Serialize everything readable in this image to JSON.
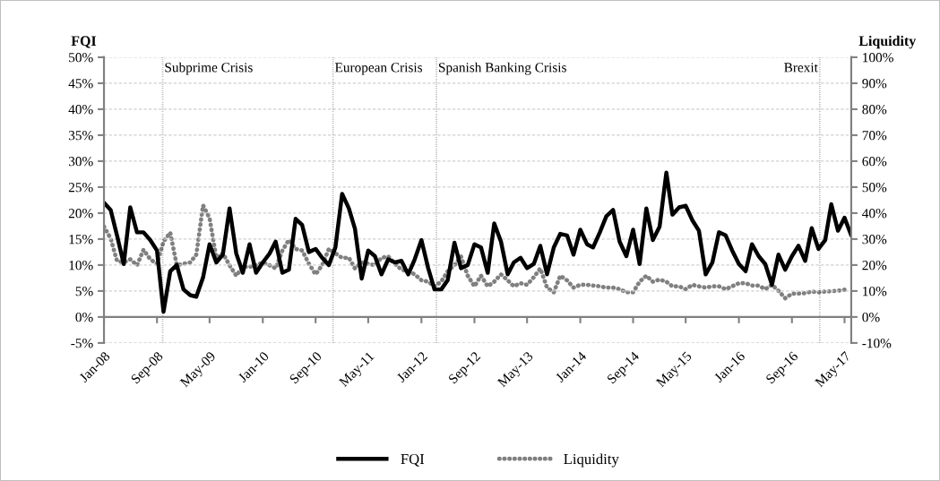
{
  "chart_data": {
    "type": "line",
    "ylabel": "FQI",
    "y2label": "Liquidity",
    "x": [
      "2008-01",
      "2008-02",
      "2008-03",
      "2008-04",
      "2008-05",
      "2008-06",
      "2008-07",
      "2008-08",
      "2008-09",
      "2008-10",
      "2008-11",
      "2008-12",
      "2009-01",
      "2009-02",
      "2009-03",
      "2009-04",
      "2009-05",
      "2009-06",
      "2009-07",
      "2009-08",
      "2009-09",
      "2009-10",
      "2009-11",
      "2009-12",
      "2010-01",
      "2010-02",
      "2010-03",
      "2010-04",
      "2010-05",
      "2010-06",
      "2010-07",
      "2010-08",
      "2010-09",
      "2010-10",
      "2010-11",
      "2010-12",
      "2011-01",
      "2011-02",
      "2011-03",
      "2011-04",
      "2011-05",
      "2011-06",
      "2011-07",
      "2011-08",
      "2011-09",
      "2011-10",
      "2011-11",
      "2011-12",
      "2012-01",
      "2012-02",
      "2012-03",
      "2012-04",
      "2012-05",
      "2012-06",
      "2012-07",
      "2012-08",
      "2012-09",
      "2012-10",
      "2012-11",
      "2012-12",
      "2013-01",
      "2013-02",
      "2013-03",
      "2013-04",
      "2013-05",
      "2013-06",
      "2013-07",
      "2013-08",
      "2013-09",
      "2013-10",
      "2013-11",
      "2013-12",
      "2014-01",
      "2014-02",
      "2014-03",
      "2014-04",
      "2014-05",
      "2014-06",
      "2014-07",
      "2014-08",
      "2014-09",
      "2014-10",
      "2014-11",
      "2014-12",
      "2015-01",
      "2015-02",
      "2015-03",
      "2015-04",
      "2015-05",
      "2015-06",
      "2015-07",
      "2015-08",
      "2015-09",
      "2015-10",
      "2015-11",
      "2015-12",
      "2016-01",
      "2016-02",
      "2016-03",
      "2016-04",
      "2016-05",
      "2016-06",
      "2016-07",
      "2016-08",
      "2016-09",
      "2016-10",
      "2016-11",
      "2016-12",
      "2017-01",
      "2017-02",
      "2017-03",
      "2017-04",
      "2017-05",
      "2017-06"
    ],
    "series": [
      {
        "name": "FQI",
        "color": "#000000",
        "line_style": "solid",
        "values": [
          22.0,
          20.6,
          15.7,
          10.2,
          21.1,
          16.3,
          16.3,
          14.8,
          12.8,
          1.0,
          8.8,
          10.0,
          5.3,
          4.2,
          3.9,
          7.6,
          14.0,
          10.5,
          12.0,
          20.9,
          12.2,
          8.5,
          14.0,
          8.5,
          10.5,
          12.2,
          14.5,
          8.5,
          9.1,
          18.9,
          17.7,
          12.5,
          13.1,
          11.4,
          10.0,
          13.4,
          23.7,
          20.9,
          17.0,
          7.4,
          12.8,
          11.7,
          8.2,
          11.1,
          10.5,
          10.8,
          8.2,
          11.1,
          14.8,
          9.4,
          5.3,
          5.3,
          7.1,
          14.3,
          9.4,
          10.0,
          14.0,
          13.4,
          8.5,
          18.0,
          14.5,
          8.2,
          10.5,
          11.4,
          9.4,
          10.2,
          13.7,
          8.2,
          13.4,
          16.0,
          15.7,
          12.0,
          16.8,
          14.0,
          13.4,
          16.3,
          19.4,
          20.6,
          14.5,
          11.7,
          16.8,
          10.2,
          20.9,
          14.8,
          17.4,
          27.8,
          19.7,
          21.1,
          21.4,
          18.6,
          16.6,
          8.2,
          10.5,
          16.3,
          15.7,
          12.8,
          10.2,
          8.8,
          14.0,
          11.7,
          10.2,
          6.2,
          12.0,
          9.1,
          11.7,
          13.7,
          10.8,
          17.1,
          13.1,
          14.8,
          21.7,
          16.6,
          19.1,
          15.7
        ]
      },
      {
        "name": "Liquidity",
        "color": "#808080",
        "line_style": "dotted",
        "axis": "y2",
        "values": [
          34.8,
          30.2,
          21.6,
          21.0,
          22.2,
          19.9,
          25.9,
          22.2,
          20.5,
          29.0,
          32.5,
          19.9,
          20.5,
          21.0,
          24.0,
          43.0,
          38.0,
          22.8,
          24.5,
          19.9,
          15.9,
          19.3,
          19.3,
          19.9,
          21.0,
          19.9,
          18.7,
          25.6,
          29.7,
          26.2,
          25.6,
          20.5,
          16.4,
          19.9,
          26.2,
          24.5,
          22.8,
          22.8,
          18.7,
          21.0,
          20.5,
          19.9,
          22.8,
          23.3,
          20.5,
          18.2,
          17.6,
          16.4,
          14.1,
          13.6,
          11.8,
          13.6,
          17.6,
          19.9,
          23.3,
          15.9,
          11.8,
          15.9,
          11.8,
          13.6,
          16.4,
          14.1,
          11.8,
          13.0,
          12.4,
          15.3,
          18.7,
          11.3,
          9.5,
          15.9,
          14.1,
          11.3,
          12.4,
          12.4,
          12.1,
          11.8,
          11.3,
          11.3,
          10.7,
          9.5,
          9.5,
          13.6,
          15.9,
          13.6,
          14.4,
          13.6,
          11.8,
          11.8,
          10.7,
          12.4,
          11.8,
          11.3,
          11.8,
          11.8,
          10.7,
          11.8,
          13.0,
          13.0,
          12.1,
          12.1,
          10.7,
          12.4,
          10.1,
          7.2,
          9.0,
          9.0,
          9.2,
          9.8,
          9.5,
          9.8,
          9.9,
          10.1,
          10.5,
          null
        ]
      }
    ],
    "xlim": [
      "2008-01",
      "2017-06"
    ],
    "xticks": [
      {
        "value": "2008-01",
        "label": "Jan-08"
      },
      {
        "value": "2008-09",
        "label": "Sep-08"
      },
      {
        "value": "2009-05",
        "label": "May-09"
      },
      {
        "value": "2010-01",
        "label": "Jan-10"
      },
      {
        "value": "2010-09",
        "label": "Sep-10"
      },
      {
        "value": "2011-05",
        "label": "May-11"
      },
      {
        "value": "2012-01",
        "label": "Jan-12"
      },
      {
        "value": "2012-09",
        "label": "Sep-12"
      },
      {
        "value": "2013-05",
        "label": "May-13"
      },
      {
        "value": "2014-01",
        "label": "Jan-14"
      },
      {
        "value": "2014-09",
        "label": "Sep-14"
      },
      {
        "value": "2015-05",
        "label": "May-15"
      },
      {
        "value": "2016-01",
        "label": "Jan-16"
      },
      {
        "value": "2016-09",
        "label": "Sep-16"
      },
      {
        "value": "2017-05",
        "label": "May-17"
      }
    ],
    "ylim": [
      -5,
      50
    ],
    "yticks": [
      {
        "value": -5,
        "label": "-5%"
      },
      {
        "value": 0,
        "label": "0%"
      },
      {
        "value": 5,
        "label": "5%"
      },
      {
        "value": 10,
        "label": "10%"
      },
      {
        "value": 15,
        "label": "15%"
      },
      {
        "value": 20,
        "label": "20%"
      },
      {
        "value": 25,
        "label": "25%"
      },
      {
        "value": 30,
        "label": "30%"
      },
      {
        "value": 35,
        "label": "35%"
      },
      {
        "value": 40,
        "label": "40%"
      },
      {
        "value": 45,
        "label": "45%"
      },
      {
        "value": 50,
        "label": "50%"
      }
    ],
    "y2lim": [
      -10,
      100
    ],
    "y2ticks": [
      {
        "value": -10,
        "label": "-10%"
      },
      {
        "value": 0,
        "label": "0%"
      },
      {
        "value": 10,
        "label": "10%"
      },
      {
        "value": 20,
        "label": "20%"
      },
      {
        "value": 30,
        "label": "30%"
      },
      {
        "value": 40,
        "label": "40%"
      },
      {
        "value": 50,
        "label": "50%"
      },
      {
        "value": 60,
        "label": "60%"
      },
      {
        "value": 70,
        "label": "70%"
      },
      {
        "value": 80,
        "label": "80%"
      },
      {
        "value": 90,
        "label": "90%"
      },
      {
        "value": 100,
        "label": "100%"
      }
    ],
    "ref_lines": [
      {
        "axis": "x",
        "value": "2008-09-27",
        "label": "Subprime Crisis",
        "color": "#000000",
        "line_style": "dotted"
      },
      {
        "axis": "x",
        "value": "2010-11-20",
        "label": "European Crisis",
        "color": "#000000",
        "line_style": "dotted"
      },
      {
        "axis": "x",
        "value": "2012-03-10",
        "label": "Spanish Banking Crisis",
        "color": "#000000",
        "line_style": "dotted"
      },
      {
        "axis": "x",
        "value": "2017-01-07",
        "label": "Brexit",
        "color": "#000000",
        "line_style": "dotted"
      }
    ],
    "grid": "y",
    "legend": "bottom",
    "marker": "none"
  }
}
